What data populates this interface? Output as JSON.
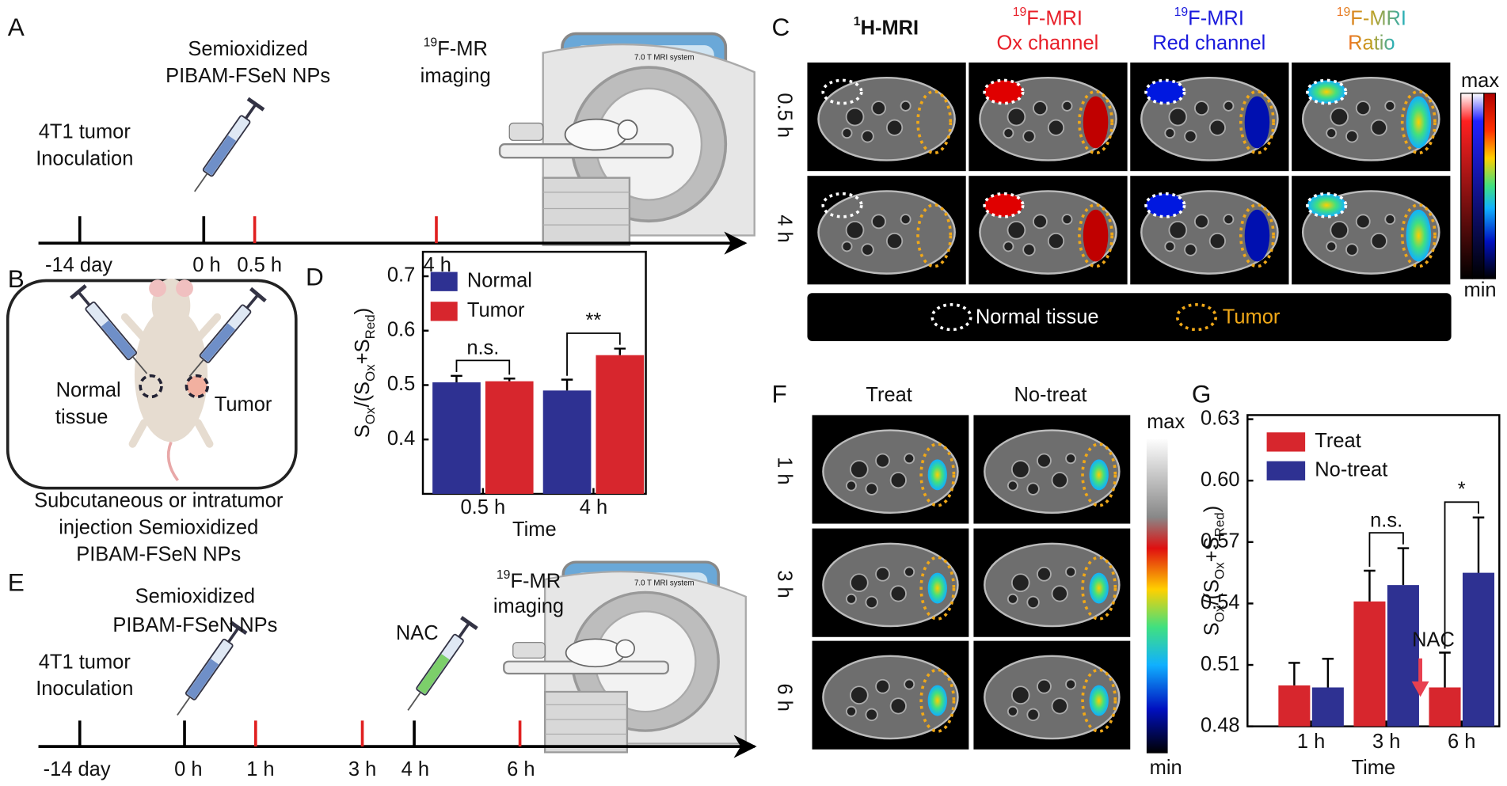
{
  "panel_labels": [
    "A",
    "B",
    "C",
    "D",
    "E",
    "F",
    "G"
  ],
  "panel_a": {
    "injection": [
      "Semioxidized",
      "PIBAM-FSeN NPs"
    ],
    "imaging": {
      "sup": "19",
      "text": "F-MR",
      "line2": "imaging"
    },
    "inoculation": [
      "4T1 tumor",
      "Inoculation"
    ],
    "timeline": [
      "-14 day",
      "0 h",
      "0.5 h",
      "4 h"
    ],
    "machine": "7.0 T MRI system"
  },
  "panel_b": {
    "normal": [
      "Normal",
      "tissue"
    ],
    "tumor": "Tumor",
    "caption": [
      "Subcutaneous or intratumor",
      "injection Semioxidized",
      "PIBAM-FSeN NPs"
    ]
  },
  "panel_c": {
    "columns": [
      {
        "sup": "1",
        "text": "H-MRI"
      },
      {
        "sup": "19",
        "text": "F-MRI",
        "line2": "Ox channel"
      },
      {
        "sup": "19",
        "text": "F-MRI",
        "line2": "Red channel"
      },
      {
        "sup": "19",
        "text": "F-MRI",
        "line2": "Ratio"
      }
    ],
    "rows": [
      "0.5 h",
      "4 h"
    ],
    "scale": [
      "max",
      "min"
    ],
    "legend": [
      "Normal tissue",
      "Tumor"
    ]
  },
  "panel_e": {
    "injection": [
      "Semioxidized",
      "PIBAM-FSeN NPs"
    ],
    "treatment": "NAC",
    "imaging": {
      "sup": "19",
      "text": "F-MR",
      "line2": "imaging"
    },
    "inoculation": [
      "4T1 tumor",
      "Inoculation"
    ],
    "timeline": [
      "-14 day",
      "0 h",
      "1 h",
      "3 h",
      "4 h",
      "6 h"
    ],
    "machine": "7.0 T MRI system"
  },
  "panel_f": {
    "columns": [
      "Treat",
      "No-treat"
    ],
    "rows": [
      "1 h",
      "3 h",
      "6 h"
    ],
    "scale": [
      "max",
      "min"
    ]
  },
  "chart_data": [
    {
      "type": "bar",
      "ylabel": [
        "S",
        "Ox",
        "/(S",
        "Ox",
        "+S",
        "Red",
        ")"
      ],
      "xlabel": "Time",
      "categories": [
        "0.5 h",
        "4 h"
      ],
      "series": [
        {
          "name": "Normal",
          "color": "#2e3192",
          "values": [
            0.505,
            0.49
          ],
          "errors": [
            0.012,
            0.02
          ]
        },
        {
          "name": "Tumor",
          "color": "#d7262d",
          "values": [
            0.507,
            0.555
          ],
          "errors": [
            0.005,
            0.012
          ]
        }
      ],
      "annotations": [
        "n.s.",
        "**"
      ],
      "ylim": [
        0.3,
        0.745
      ],
      "yticks": [
        0.4,
        0.5,
        0.6,
        0.7
      ]
    },
    {
      "type": "bar",
      "ylabel": [
        "S",
        "Ox",
        "/(S",
        "Ox",
        "+S",
        "Red",
        ")"
      ],
      "xlabel": "Time",
      "categories": [
        "1 h",
        "3 h",
        "6 h"
      ],
      "series": [
        {
          "name": "Treat",
          "color": "#d7262d",
          "values": [
            0.5,
            0.541,
            0.499
          ],
          "errors": [
            0.011,
            0.015,
            0.017
          ]
        },
        {
          "name": "No-treat",
          "color": "#2e3192",
          "values": [
            0.499,
            0.549,
            0.555
          ],
          "errors": [
            0.014,
            0.018,
            0.027
          ]
        }
      ],
      "annotations": [
        null,
        "n.s.",
        "*"
      ],
      "marker": "NAC",
      "ylim": [
        0.48,
        0.632
      ],
      "yticks": [
        {
          "value": 0.48,
          "label": "0.48"
        },
        0.51,
        0.54,
        0.57,
        {
          "value": 0.6,
          "label": "0.60"
        },
        0.63
      ]
    }
  ]
}
